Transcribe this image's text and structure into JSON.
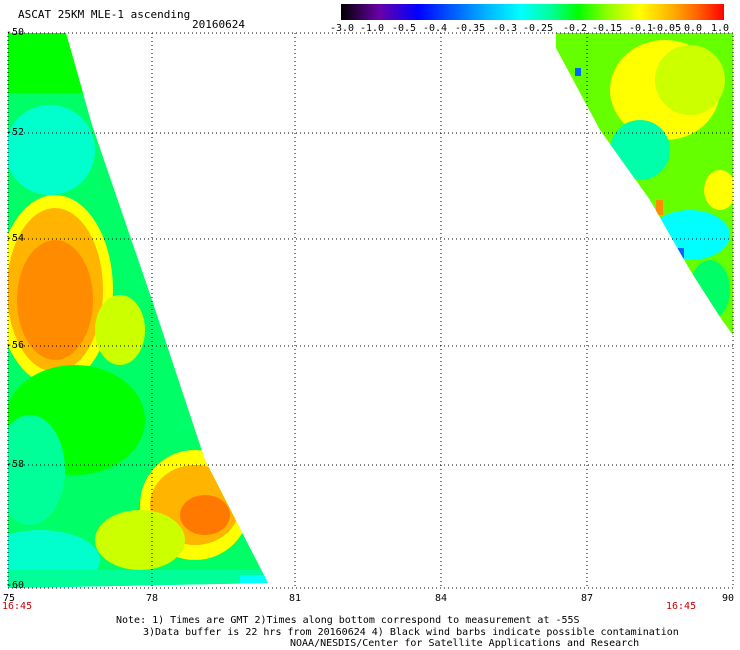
{
  "header": {
    "title": "ASCAT 25KM MLE-1 ascending",
    "date": "20160624"
  },
  "colorbar": {
    "labels": [
      "-3.0",
      "-1.0",
      "-0.5",
      "-0.4",
      "-0.35",
      "-0.3",
      "-0.25",
      "-0.2",
      "-0.15",
      "-0.1",
      "-0.05",
      "0.0",
      "1.0"
    ],
    "colors": [
      "#000000",
      "#6a00a8",
      "#0000ff",
      "#0064ff",
      "#00b4ff",
      "#00ffff",
      "#00ff96",
      "#00ff00",
      "#96ff00",
      "#ffff00",
      "#ffb400",
      "#ff6400",
      "#ff0000"
    ]
  },
  "axes": {
    "y_ticks": [
      "-50",
      "-52",
      "-54",
      "-56",
      "-58",
      "-60"
    ],
    "x_ticks": [
      "75",
      "78",
      "81",
      "84",
      "87",
      "90"
    ],
    "time_left": "16:45",
    "time_right": "16:45"
  },
  "notes": {
    "line1": "Note: 1) Times are GMT 2)Times along bottom correspond to measurement at -55S",
    "line2": "3)Data buffer is 22 hrs from 20160624 4) Black wind barbs indicate possible contamination",
    "line3": "NOAA/NESDIS/Center for Satellite Applications and Research"
  }
}
